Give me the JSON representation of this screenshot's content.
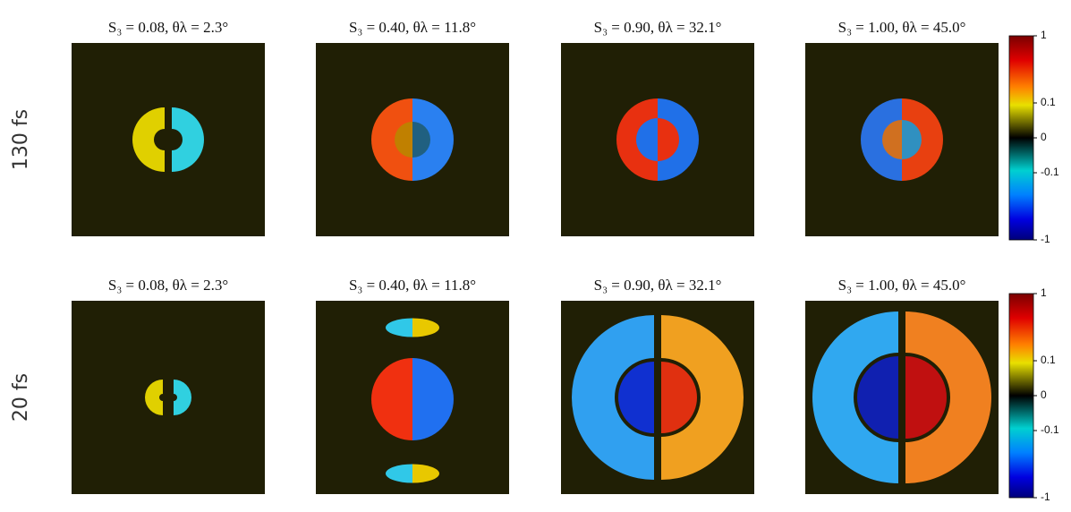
{
  "rows": [
    {
      "label": "130 fs",
      "panels": [
        {
          "title": "S₃ = 0.08, θλ = 2.3°"
        },
        {
          "title": "S₃ = 0.40, θλ = 11.8°"
        },
        {
          "title": "S₃ = 0.90, θλ = 32.1°"
        },
        {
          "title": "S₃ = 1.00, θλ = 45.0°"
        }
      ]
    },
    {
      "label": "20 fs",
      "panels": [
        {
          "title": "S₃ = 0.08, θλ = 2.3°"
        },
        {
          "title": "S₃ = 0.40, θλ = 11.8°"
        },
        {
          "title": "S₃ = 0.90, θλ = 32.1°"
        },
        {
          "title": "S₃ = 1.00, θλ = 45.0°"
        }
      ]
    }
  ],
  "colorbar": {
    "ticks": [
      1,
      0.1,
      0,
      -0.1,
      -1
    ]
  }
}
